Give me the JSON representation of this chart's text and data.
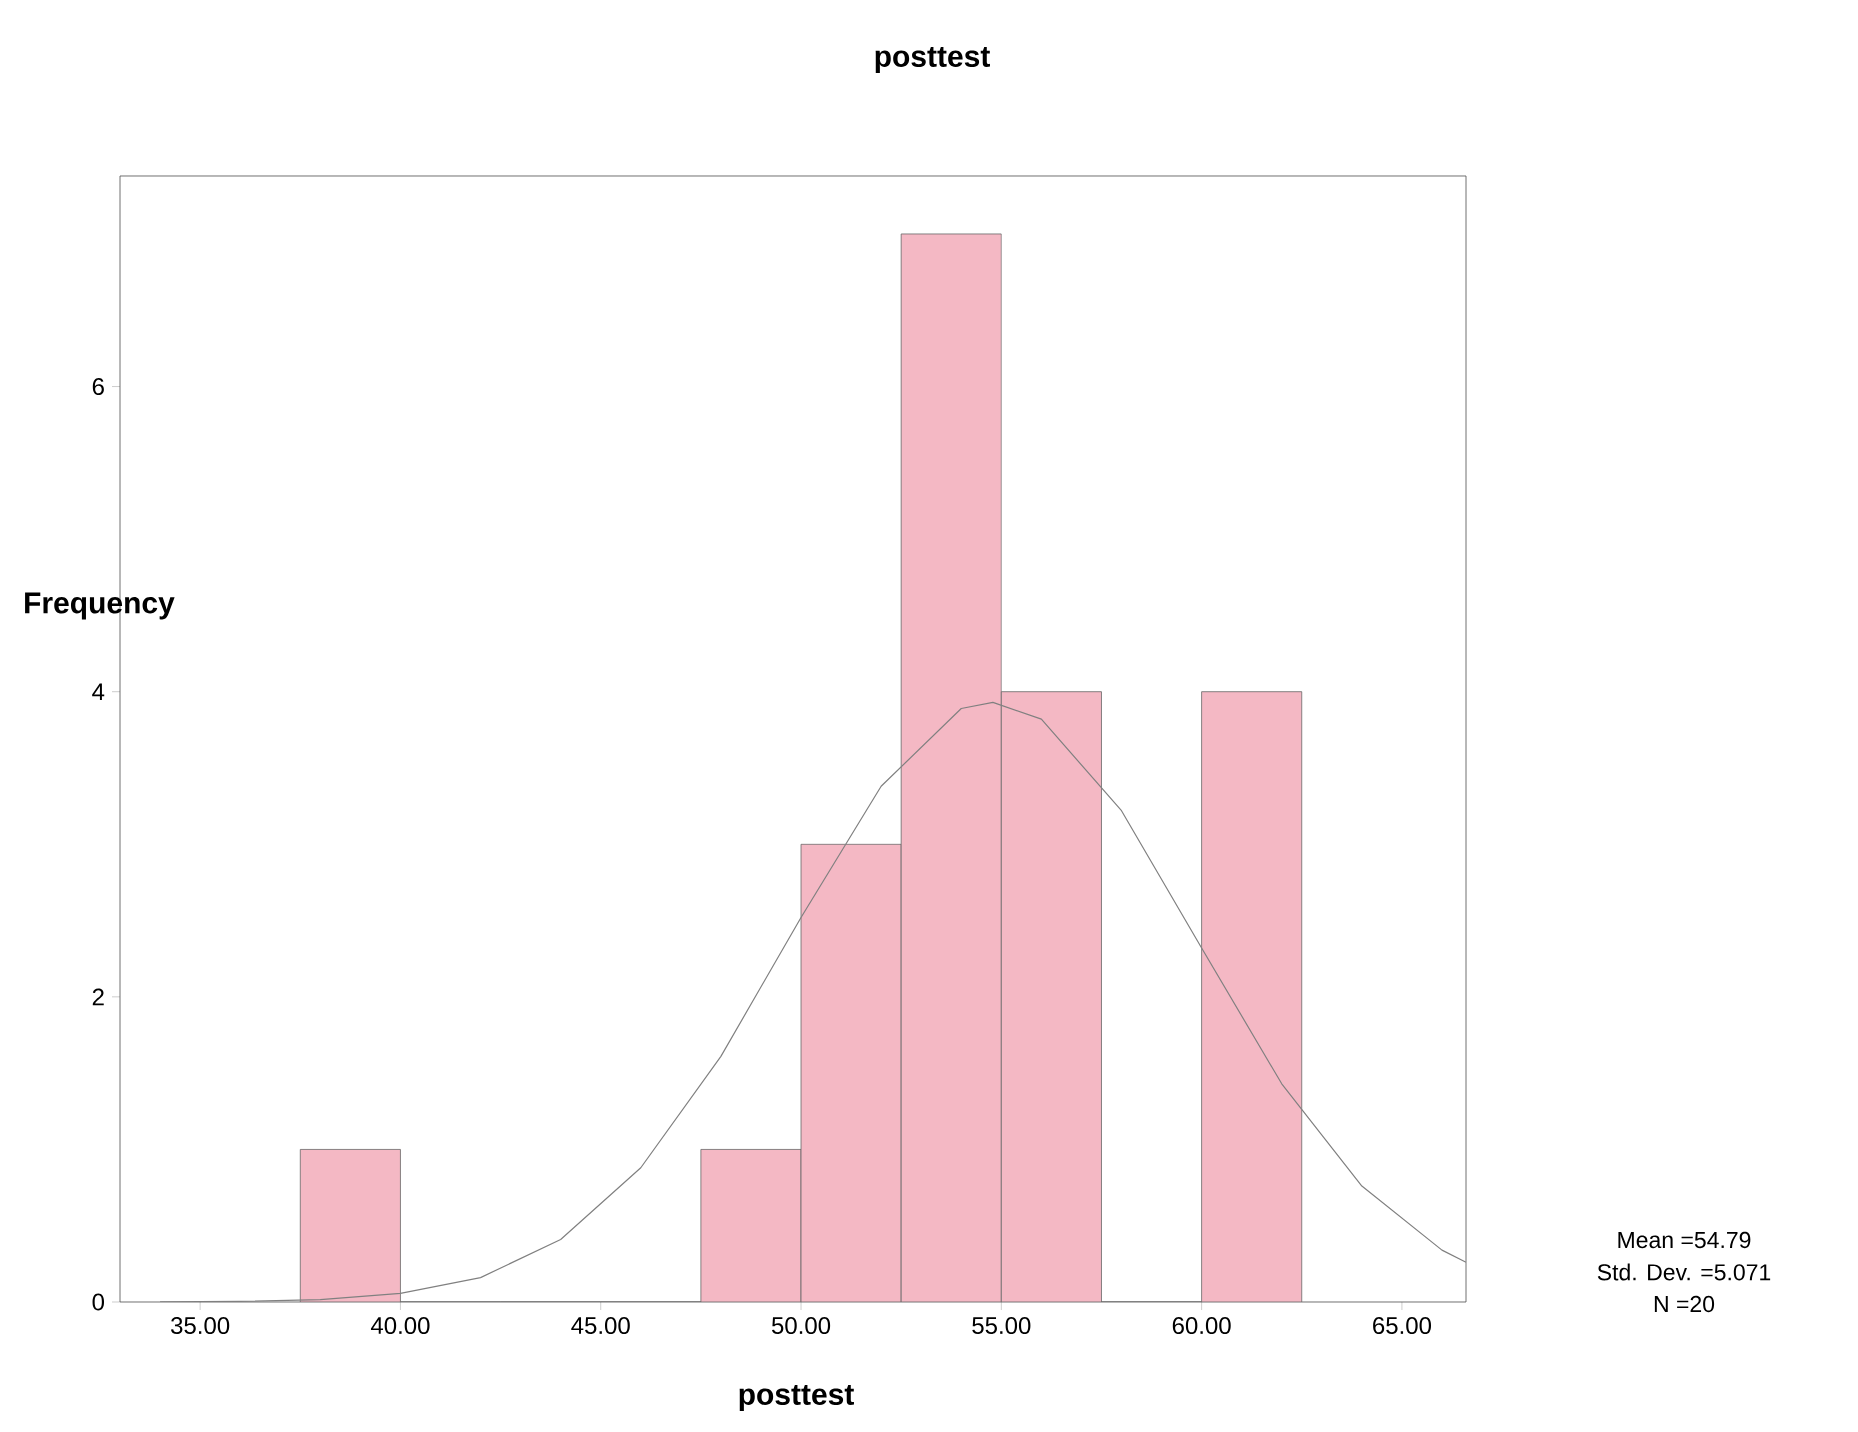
{
  "chart_data": {
    "type": "histogram",
    "title": "posttest",
    "xlabel": "posttest",
    "ylabel": "Frequency",
    "bins": [
      37.5,
      40,
      42.5,
      45,
      47.5,
      50,
      52.5,
      55,
      57.5,
      60,
      62.5
    ],
    "values": [
      1,
      0,
      0,
      0,
      1,
      3,
      7,
      4,
      0,
      4
    ],
    "color": "#f4b8c4",
    "series": [
      {
        "type": "line",
        "color": "#808080",
        "x": [
          34,
          36,
          38,
          40,
          42,
          44,
          46,
          48,
          50,
          52,
          54,
          54.79,
          56,
          58,
          60,
          62,
          64,
          66,
          66.6
        ],
        "values": [
          0.001,
          0.004,
          0.016,
          0.056,
          0.16,
          0.41,
          0.88,
          1.61,
          2.52,
          3.38,
          3.89,
          3.93,
          3.82,
          3.22,
          2.32,
          1.43,
          0.76,
          0.34,
          0.26
        ]
      }
    ],
    "xlim": [
      33,
      66.6
    ],
    "ylim": [
      0,
      7.38
    ],
    "xticks": [
      {
        "value": 35,
        "label": "35.00"
      },
      {
        "value": 40,
        "label": "40.00"
      },
      {
        "value": 45,
        "label": "45.00"
      },
      {
        "value": 50,
        "label": "50.00"
      },
      {
        "value": 55,
        "label": "55.00"
      },
      {
        "value": 60,
        "label": "60.00"
      },
      {
        "value": 65,
        "label": "65.00"
      }
    ],
    "yticks": [
      0,
      2,
      4,
      6
    ],
    "annotations": [
      "Mean =54.79",
      "Std. Dev. =5.071",
      "N =20"
    ]
  }
}
